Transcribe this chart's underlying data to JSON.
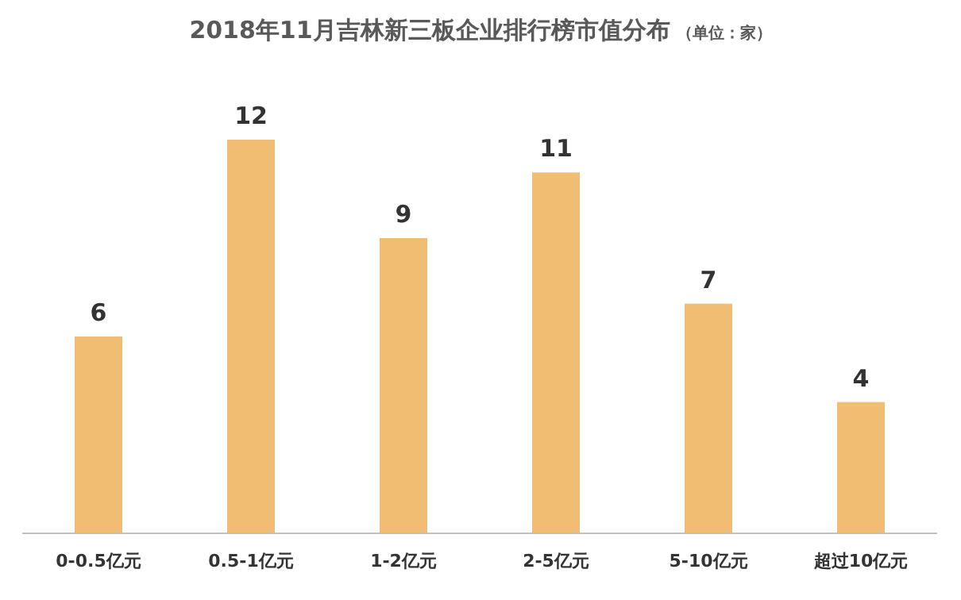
{
  "chart_data": {
    "type": "bar",
    "title": "2018年11月吉林新三板企业排行榜市值分布",
    "subtitle": "（单位：家）",
    "categories": [
      "0-0.5亿元",
      "0.5-1亿元",
      "1-2亿元",
      "2-5亿元",
      "5-10亿元",
      "超过10亿元"
    ],
    "values": [
      6,
      12,
      9,
      11,
      7,
      4
    ],
    "color": "#f0bd72",
    "data_labels": true
  }
}
